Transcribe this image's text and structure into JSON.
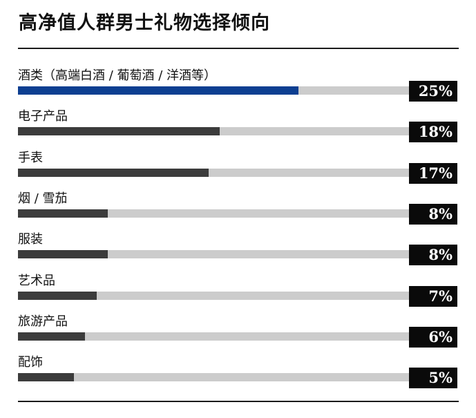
{
  "chart_data": {
    "type": "bar",
    "orientation": "horizontal",
    "title": "高净值人群男士礼物选择倾向",
    "categories": [
      "酒类（高端白酒 / 葡萄酒 / 洋酒等）",
      "电子产品",
      "手表",
      "烟 / 雪茄",
      "服装",
      "艺术品",
      "旅游产品",
      "配饰"
    ],
    "values": [
      25,
      18,
      17,
      8,
      8,
      7,
      6,
      5
    ],
    "value_labels": [
      "25%",
      "18%",
      "17%",
      "8%",
      "8%",
      "7%",
      "6%",
      "5%"
    ],
    "unit": "%",
    "xlim": [
      0,
      25
    ],
    "grid": false,
    "legend": "none",
    "colors": {
      "highlight": "#0d3f91",
      "bar": "#3c3c3c",
      "track": "#cccccc",
      "value_box": "#0a0a0a",
      "value_text": "#ffffff"
    }
  }
}
